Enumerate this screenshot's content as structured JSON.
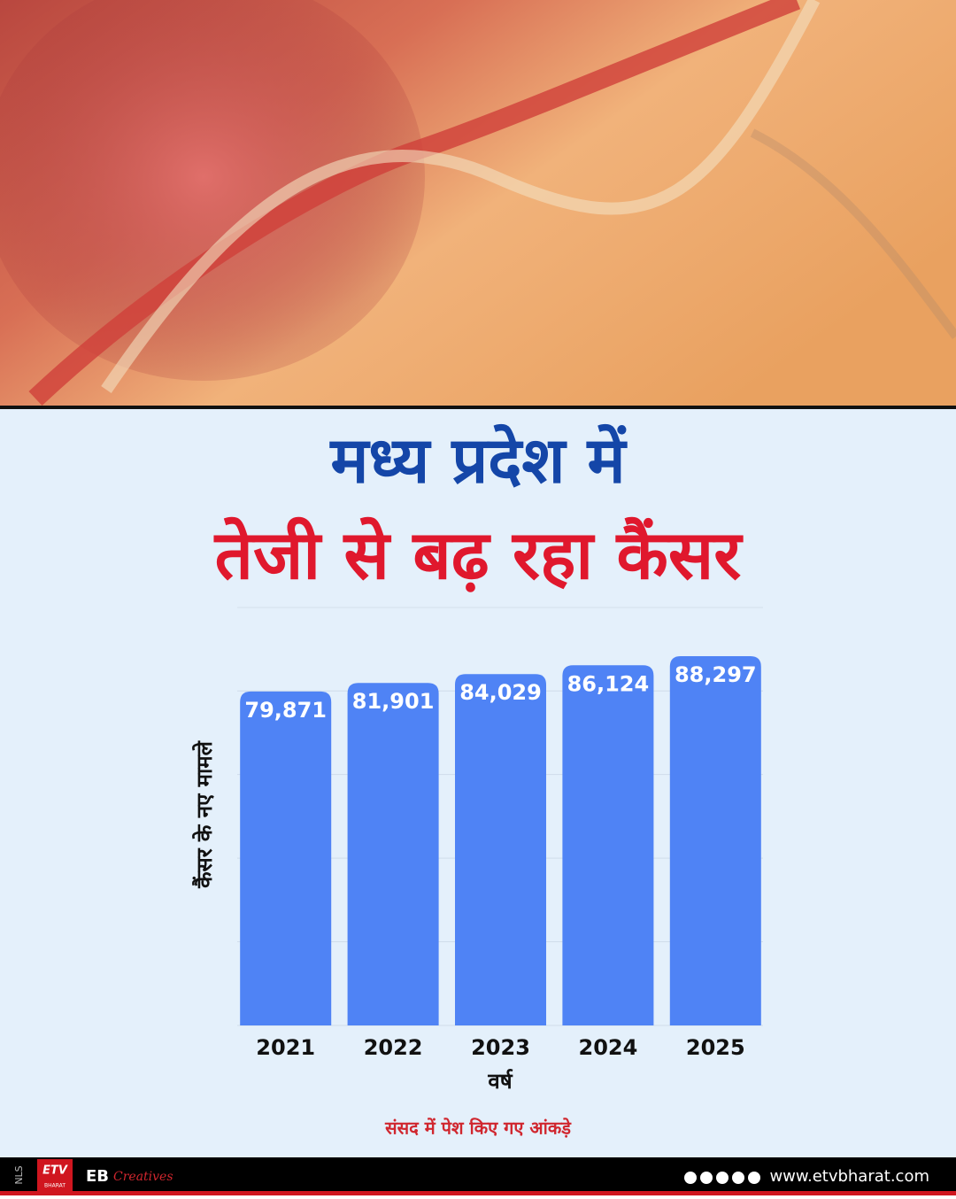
{
  "header": {
    "title_line1": "मध्य प्रदेश में",
    "title_line2": "तेजी से बढ़ रहा कैंसर"
  },
  "chart_data": {
    "type": "bar",
    "x_label": "वर्ष",
    "y_label": "कैंसर के नए मामले",
    "categories": [
      "2021",
      "2022",
      "2023",
      "2024",
      "2025"
    ],
    "values": [
      79871,
      81901,
      84029,
      86124,
      88297
    ],
    "value_labels": [
      "79,871",
      "81,901",
      "84,029",
      "86,124",
      "88,297"
    ],
    "color": "#4f83f5",
    "ylim": [
      0,
      90000
    ],
    "yticks": [
      0,
      20000,
      40000,
      60000,
      80000
    ],
    "grid": true
  },
  "source": "संसद में पेश किए गए आंकड़े",
  "footer": {
    "side_tag": "NLS",
    "logo_main": "ETV",
    "logo_sub": "BHARAT",
    "brand": "EB",
    "brand_script": "Creatives",
    "website": "www.etvbharat.com"
  }
}
